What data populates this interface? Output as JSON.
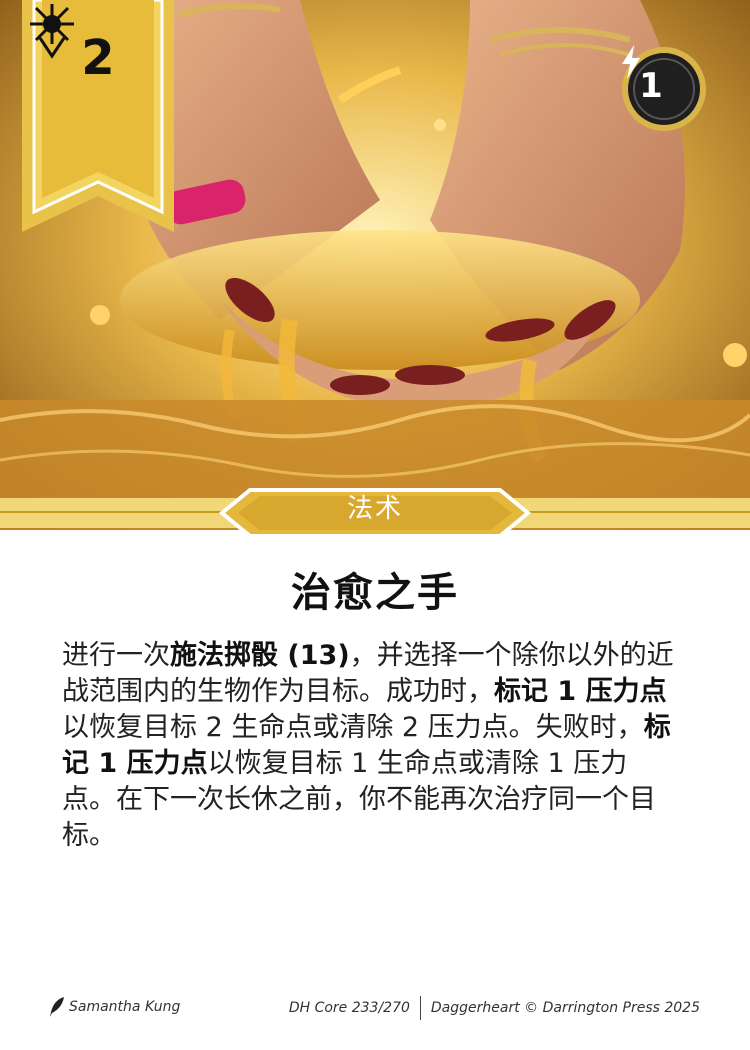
{
  "card": {
    "level": "2",
    "recall_cost": "1",
    "type": "法术",
    "title": "治愈之手",
    "text": {
      "p1": "进行一次",
      "b1": "施法掷骰 (13)",
      "p2": "，并选择一个除你以外的近战范围内的生物作为目标。成功时，",
      "b2": "标记 1 压力点",
      "p3": "以恢复目标 2 生命点或清除 2 压力点。失败时，",
      "b3": "标记 1 压力点",
      "p4": "以恢复目标 1 生命点或清除 1 压力点。在下一次长休之前，你不能再次治疗同一个目标。"
    }
  },
  "footer": {
    "artist": "Samantha Kung",
    "set_number": "DH Core 233/270",
    "copyright": "Daggerheart © Darrington Press 2025"
  },
  "icons": {
    "domain": "splendor-domain-icon",
    "cost": "lightning-bolt-icon",
    "artist": "quill-icon"
  },
  "colors": {
    "gold": "#e9c24a",
    "gold_dark": "#c79a1e",
    "cost_ring": "#1f1f1f",
    "text": "#222222"
  }
}
